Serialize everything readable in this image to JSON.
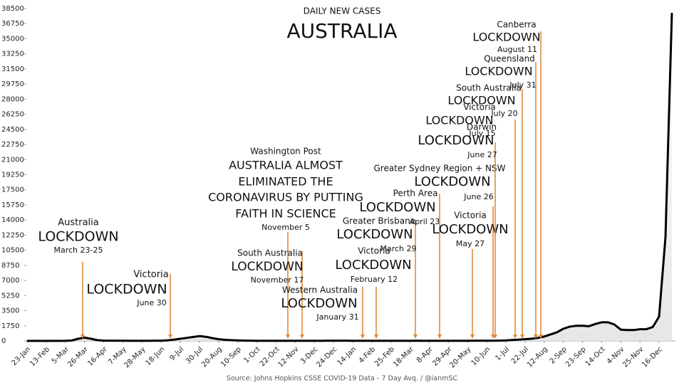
{
  "chart_data": {
    "type": "line",
    "subtitle": "DAILY NEW CASES",
    "title": "AUSTRALIA",
    "source": "Source: Johns Hopkins CSSE COVID-19 Data - 7 Day Avq. / @ianmSC",
    "color": "#000000",
    "area_color": "#e6e6e6",
    "annotation_color": "#e08a3c",
    "ylim": [
      0,
      38500
    ],
    "yticks": [
      0,
      1750,
      3500,
      5250,
      7000,
      8750,
      10500,
      12250,
      14000,
      15750,
      17500,
      19250,
      21000,
      22750,
      24500,
      26250,
      28000,
      29750,
      31500,
      33250,
      35000,
      36750,
      38500
    ],
    "categories": [
      "23-Jan",
      null,
      null,
      "13-Feb",
      null,
      null,
      "5-Mar",
      null,
      null,
      "26-Mar",
      null,
      null,
      "16-Apr",
      null,
      null,
      "7-May",
      null,
      null,
      "28-May",
      null,
      null,
      "18-Jun",
      null,
      null,
      "9-Jul",
      null,
      null,
      "30-Jul",
      null,
      null,
      "20-Aug",
      null,
      null,
      "10-Sep",
      null,
      null,
      "1-Oct",
      null,
      null,
      "22-Oct",
      null,
      null,
      "12-Nov",
      null,
      null,
      "3-Dec",
      null,
      null,
      "24-Dec",
      null,
      null,
      "14-Jan",
      null,
      null,
      "4-Feb",
      null,
      null,
      "25-Feb",
      null,
      null,
      "18-Mar",
      null,
      null,
      "8-Apr",
      null,
      null,
      "29-Apr",
      null,
      null,
      "20-May",
      null,
      null,
      "10-Jun",
      null,
      null,
      "1-Jul",
      null,
      null,
      "22-Jul",
      null,
      null,
      "12-Aug",
      null,
      null,
      "2-Sep",
      null,
      null,
      "23-Sep",
      null,
      null,
      "14-Oct",
      null,
      null,
      "4-Nov",
      null,
      null,
      "25-Nov",
      null,
      null,
      "16-Dec",
      null,
      null
    ],
    "values": [
      0,
      0,
      0,
      0,
      0,
      0,
      10,
      40,
      250,
      380,
      250,
      80,
      30,
      15,
      15,
      15,
      12,
      10,
      10,
      10,
      15,
      20,
      60,
      150,
      250,
      350,
      450,
      550,
      480,
      320,
      200,
      120,
      80,
      50,
      30,
      15,
      12,
      12,
      12,
      10,
      8,
      8,
      10,
      12,
      10,
      10,
      10,
      15,
      25,
      25,
      20,
      10,
      8,
      8,
      10,
      10,
      8,
      8,
      8,
      10,
      12,
      15,
      10,
      10,
      12,
      12,
      10,
      10,
      10,
      10,
      15,
      15,
      15,
      20,
      30,
      50,
      100,
      150,
      200,
      250,
      350,
      500,
      750,
      1000,
      1400,
      1650,
      1750,
      1750,
      1700,
      1950,
      2150,
      2150,
      1900,
      1300,
      1250,
      1250,
      1350,
      1350,
      1600,
      2800,
      12000,
      38000
    ],
    "annotations": [
      {
        "lines": [
          "Australia",
          "LOCKDOWN",
          "March 23-25"
        ]
      },
      {
        "lines": [
          "Victoria",
          "LOCKDOWN",
          "June 30"
        ]
      },
      {
        "lines": [
          "Washington Post",
          "AUSTRALIA ALMOST",
          "ELIMINATED THE",
          "CORONAVIRUS BY PUTTING",
          "FAITH IN SCIENCE",
          "November 5"
        ]
      },
      {
        "lines": [
          "South Australia",
          "LOCKDOWN",
          "November 17"
        ]
      },
      {
        "lines": [
          "Western Australia",
          "LOCKDOWN",
          "January 31"
        ]
      },
      {
        "lines": [
          "Victoria",
          "LOCKDOWN",
          "February 12"
        ]
      },
      {
        "lines": [
          "Greater Brisbane",
          "LOCKDOWN",
          "March 29"
        ]
      },
      {
        "lines": [
          "Perth Area",
          "LOCKDOWN",
          "April 23"
        ]
      },
      {
        "lines": [
          "Greater Sydney Region + NSW",
          "LOCKDOWN",
          "June 26"
        ]
      },
      {
        "lines": [
          "Victoria",
          "LOCKDOWN",
          "May 27"
        ]
      },
      {
        "lines": [
          "Darwin",
          "LOCKDOWN",
          "June 27"
        ]
      },
      {
        "lines": [
          "Victoria",
          "LOCKDOWN",
          "July 15"
        ]
      },
      {
        "lines": [
          "South Australia",
          "LOCKDOWN",
          "July 20"
        ]
      },
      {
        "lines": [
          "Queensland",
          "LOCKDOWN",
          "July 31"
        ]
      },
      {
        "lines": [
          "Canberra",
          "LOCKDOWN",
          "August 11"
        ]
      }
    ]
  }
}
